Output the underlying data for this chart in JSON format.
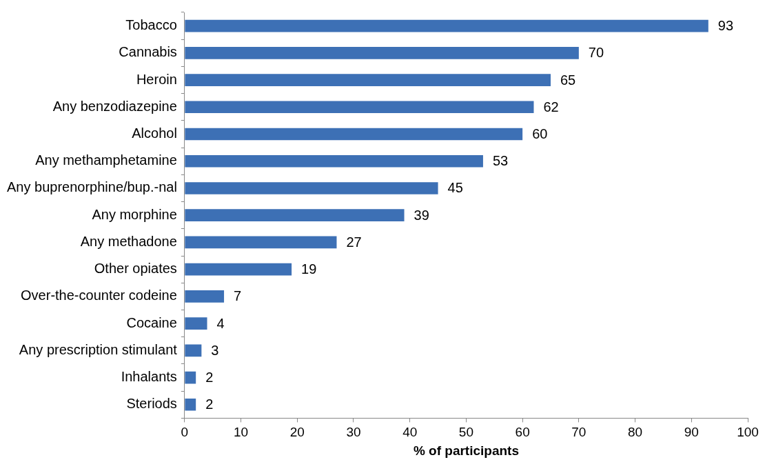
{
  "chart_data": {
    "type": "bar",
    "orientation": "horizontal",
    "xlabel": "% of participants",
    "categories": [
      "Tobacco",
      "Cannabis",
      "Heroin",
      "Any benzodiazepine",
      "Alcohol",
      "Any methamphetamine",
      "Any buprenorphine/bup.-nal",
      "Any morphine",
      "Any methadone",
      "Other opiates",
      "Over-the-counter codeine",
      "Cocaine",
      "Any prescription stimulant",
      "Inhalants",
      "Steriods"
    ],
    "values": [
      93,
      70,
      65,
      62,
      60,
      53,
      45,
      39,
      27,
      19,
      7,
      4,
      3,
      2,
      2
    ],
    "color": "#3d70b5",
    "xlim": [
      0,
      100
    ],
    "xticks": [
      0,
      10,
      20,
      30,
      40,
      50,
      60,
      70,
      80,
      90,
      100
    ],
    "grid": false,
    "legend": false,
    "data_labels": true
  }
}
